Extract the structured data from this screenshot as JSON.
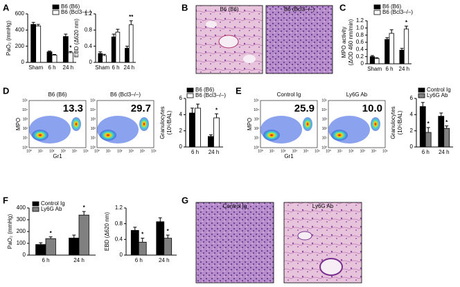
{
  "chart_data": [
    {
      "type": "bar",
      "ylabel": [
        "PaO₂ (mmHg)"
      ],
      "categories": [
        "Sham",
        "6 h",
        "24 h"
      ],
      "series": [
        {
          "name": "B6 (B6)",
          "color": "#000000",
          "values": [
            470,
            130,
            320
          ],
          "errors": [
            25,
            10,
            30
          ],
          "markers": [
            null,
            null,
            null
          ]
        },
        {
          "name": "B6 (Bcl3–/–)",
          "color": "#ffffff",
          "values": [
            450,
            90,
            120
          ],
          "errors": [
            20,
            8,
            15
          ],
          "markers": [
            null,
            null,
            "*"
          ]
        }
      ],
      "ylim": [
        0,
        600
      ],
      "yticks": [
        0,
        200,
        400,
        600
      ],
      "legend": "upper right"
    },
    {
      "type": "bar",
      "ylabel": [
        "EBD (Δ620 nm)"
      ],
      "categories": [
        "Sham",
        "6 h",
        "24 h"
      ],
      "series": [
        {
          "name": "B6 (B6)",
          "color": "#000000",
          "values": [
            0.22,
            0.63,
            0.35
          ],
          "errors": [
            0.04,
            0.07,
            0.05
          ],
          "markers": [
            null,
            null,
            null
          ]
        },
        {
          "name": "B6 (Bcl3–/–)",
          "color": "#ffffff",
          "values": [
            0.17,
            0.75,
            0.93
          ],
          "errors": [
            0.03,
            0.07,
            0.1
          ],
          "markers": [
            null,
            null,
            "**"
          ]
        }
      ],
      "ylim": [
        0,
        1.2
      ],
      "yticks": [
        0,
        0.4,
        0.8,
        1.2
      ]
    },
    {
      "type": "bar",
      "ylabel": [
        "MPO activity",
        "(ΔOD 460 nm/min)"
      ],
      "categories": [
        "Sham",
        "6 h",
        "24 h"
      ],
      "series": [
        {
          "name": "B6 (B6)",
          "color": "#000000",
          "values": [
            0.2,
            0.68,
            0.38
          ],
          "errors": [
            0.03,
            0.05,
            0.05
          ],
          "markers": [
            null,
            null,
            null
          ]
        },
        {
          "name": "B6 (Bcl3–/–)",
          "color": "#ffffff",
          "values": [
            0.15,
            0.85,
            0.97
          ],
          "errors": [
            0.02,
            0.1,
            0.08
          ],
          "markers": [
            null,
            null,
            "*"
          ]
        }
      ],
      "ylim": [
        0,
        1.2
      ],
      "yticks": [
        0,
        0.2,
        0.4,
        0.6,
        0.8,
        {
          "value": 1,
          "label": "1.0"
        },
        1.2
      ],
      "legend": "upper left"
    },
    {
      "type": "bar",
      "ylabel": [
        "Granulocytes",
        "(10⁵/BAL)"
      ],
      "categories": [
        "6 h",
        "24 h"
      ],
      "series": [
        {
          "name": "B6 (B6)",
          "color": "#000000",
          "values": [
            4.2,
            1.3
          ],
          "errors": [
            0.6,
            0.2
          ],
          "markers": [
            null,
            null
          ]
        },
        {
          "name": "B6 (Bcl3–/–)",
          "color": "#ffffff",
          "values": [
            4.8,
            3.6
          ],
          "errors": [
            0.5,
            0.5
          ],
          "markers": [
            null,
            "*"
          ]
        }
      ],
      "ylim": [
        0,
        6
      ],
      "yticks": [
        0,
        2,
        4,
        6
      ],
      "legend": "upper left"
    },
    {
      "type": "bar",
      "ylabel": [
        "Granulocytes",
        "(10⁵/BAL)"
      ],
      "categories": [
        "6 h",
        "24 h"
      ],
      "series": [
        {
          "name": "Control Ig",
          "color": "#000000",
          "values": [
            5.0,
            3.8
          ],
          "errors": [
            0.5,
            0.4
          ],
          "markers": [
            null,
            null
          ]
        },
        {
          "name": "Ly6G Ab",
          "color": "#808080",
          "values": [
            1.8,
            2.3
          ],
          "errors": [
            0.6,
            0.3
          ],
          "markers": [
            "*",
            "*"
          ]
        }
      ],
      "ylim": [
        0,
        6
      ],
      "yticks": [
        0,
        2,
        4,
        6
      ],
      "legend": "upper left"
    },
    {
      "type": "bar",
      "ylabel": [
        "PaO₂ (mmHg)"
      ],
      "categories": [
        "6 h",
        "24 h"
      ],
      "series": [
        {
          "name": "Control Ig",
          "color": "#000000",
          "values": [
            90,
            145
          ],
          "errors": [
            15,
            25
          ],
          "markers": [
            null,
            null
          ]
        },
        {
          "name": "Ly6G Ab",
          "color": "#808080",
          "values": [
            140,
            340
          ],
          "errors": [
            15,
            30
          ],
          "markers": [
            "*",
            "*"
          ]
        }
      ],
      "ylim": [
        0,
        400
      ],
      "yticks": [
        0,
        100,
        200,
        300,
        400
      ],
      "legend": "upper left"
    },
    {
      "type": "bar",
      "ylabel": [
        "EBD (Δ620 nm)"
      ],
      "categories": [
        "6 h",
        "24 h"
      ],
      "series": [
        {
          "name": "Control Ig",
          "color": "#000000",
          "values": [
            0.63,
            0.85
          ],
          "errors": [
            0.08,
            0.1
          ],
          "markers": [
            null,
            null
          ]
        },
        {
          "name": "Ly6G Ab",
          "color": "#808080",
          "values": [
            0.33,
            0.43
          ],
          "errors": [
            0.1,
            0.08
          ],
          "markers": [
            "*",
            "*"
          ]
        }
      ],
      "ylim": [
        0,
        1.2
      ],
      "yticks": [
        0,
        0.4,
        0.8,
        1.2
      ]
    }
  ],
  "panels": [
    "A",
    "B",
    "C",
    "D",
    "E",
    "F",
    "G"
  ],
  "images": [
    {
      "label": "B6 (B6)"
    },
    {
      "label": "B6 (Bcl3–/–)"
    },
    {
      "label": "Control Ig"
    },
    {
      "label": "Ly6G Ab"
    }
  ],
  "flow_plots": [
    {
      "title": "B6 (B6)",
      "value": "13.3"
    },
    {
      "title": "B6 (Bcl3–/–)",
      "value": "29.7"
    },
    {
      "title": "Control Ig",
      "value": "25.9"
    },
    {
      "title": "Ly6G Ab",
      "value": "10.0"
    }
  ],
  "flow_axes": {
    "y": "MPO",
    "x": "Gr1",
    "ticks": [
      "10⁰",
      "10¹",
      "10²",
      "10³",
      "10⁴",
      "10⁵"
    ]
  }
}
